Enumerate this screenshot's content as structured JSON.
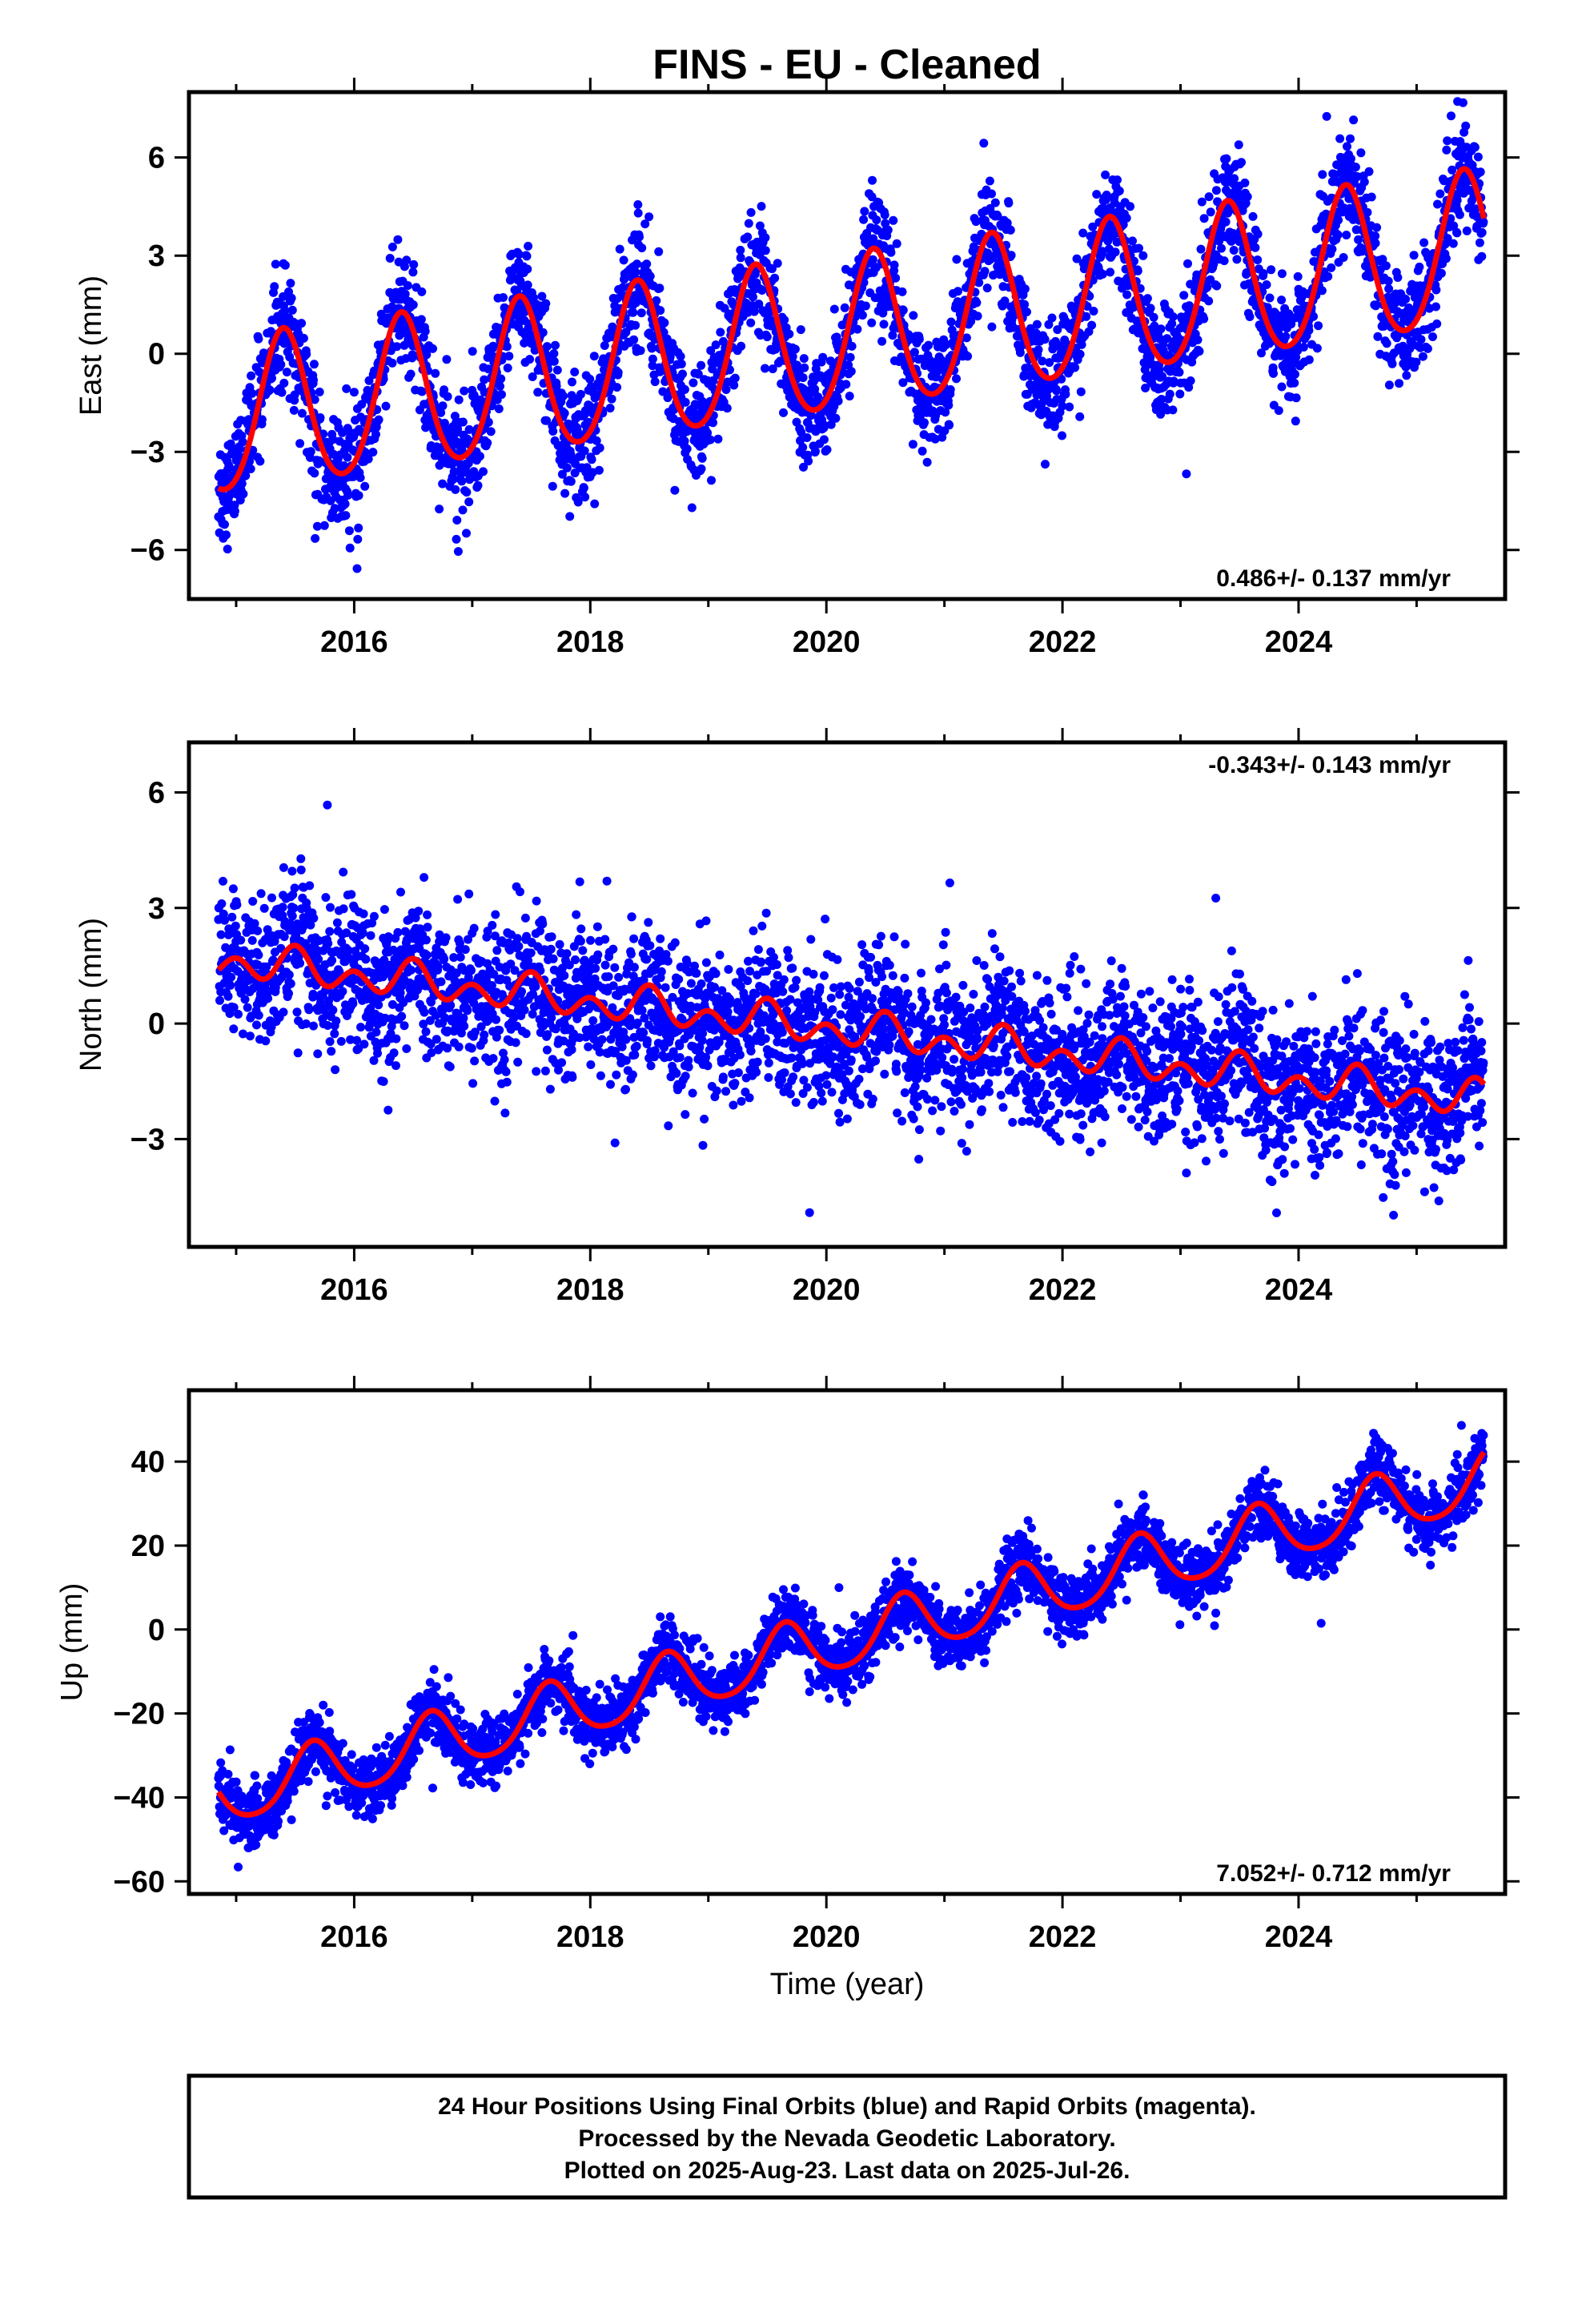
{
  "title": "FINS  - EU - Cleaned",
  "footer": {
    "line1": "24 Hour Positions Using Final Orbits (blue) and Rapid Orbits (magenta).",
    "line2": "Processed by the Nevada Geodetic Laboratory.",
    "line3": "Plotted on 2025-Aug-23. Last data on 2025-Jul-26."
  },
  "colors": {
    "points": "#0000ff",
    "fit": "#ff0000",
    "frame": "#000000"
  },
  "chart_data": [
    {
      "type": "scatter",
      "ylabel": "East (mm)",
      "xlabel": "",
      "xlim": [
        2014.6,
        2025.75
      ],
      "ylim": [
        -7.5,
        8.0
      ],
      "xticks": [
        "2016",
        "2018",
        "2020",
        "2022",
        "2024"
      ],
      "yticks": [
        "6",
        "3",
        "0",
        "−3",
        "−6"
      ],
      "rate_label": "0.486+/- 0.137 mm/yr",
      "rate_position": "bottom-right",
      "data_span": [
        2014.85,
        2025.57
      ],
      "fit": {
        "offset_at_2015": -2.0,
        "rate_mm_per_yr": 0.486,
        "annual_amplitude": 2.35,
        "annual_peak_year_fraction": 0.4,
        "semiannual_amplitude": 0.25,
        "scatter_sigma": 0.85
      },
      "series": [
        {
          "name": "",
          "role": "daily positions",
          "color": "#0000ff"
        },
        {
          "name": "",
          "role": "model fit",
          "color": "#ff0000"
        }
      ]
    },
    {
      "type": "scatter",
      "ylabel": "North (mm)",
      "xlabel": "",
      "xlim": [
        2014.6,
        2025.75
      ],
      "ylim": [
        -5.8,
        7.3
      ],
      "xticks": [
        "2016",
        "2018",
        "2020",
        "2022",
        "2024"
      ],
      "yticks": [
        "6",
        "3",
        "0",
        "−3"
      ],
      "rate_label": "-0.343+/- 0.143 mm/yr",
      "rate_position": "top-right",
      "data_span": [
        2014.85,
        2025.57
      ],
      "fit": {
        "offset_at_2015": 1.6,
        "rate_mm_per_yr": -0.343,
        "annual_amplitude": 0.25,
        "annual_peak_year_fraction": 0.5,
        "semiannual_amplitude": 0.35,
        "scatter_sigma": 0.95
      },
      "series": [
        {
          "name": "",
          "role": "daily positions",
          "color": "#0000ff"
        },
        {
          "name": "",
          "role": "model fit",
          "color": "#ff0000"
        }
      ]
    },
    {
      "type": "scatter",
      "ylabel": "Up (mm)",
      "xlabel": "Time (year)",
      "xlim": [
        2014.6,
        2025.75
      ],
      "ylim": [
        -63,
        57
      ],
      "xticks": [
        "2016",
        "2018",
        "2020",
        "2022",
        "2024"
      ],
      "yticks": [
        "40",
        "20",
        "0",
        "−20",
        "−40",
        "−60"
      ],
      "rate_label": "7.052+/- 0.712 mm/yr",
      "rate_position": "bottom-right",
      "data_span": [
        2014.85,
        2025.57
      ],
      "fit": {
        "offset_at_2015": -39.0,
        "rate_mm_per_yr": 7.052,
        "annual_amplitude": 7.0,
        "annual_peak_year_fraction": 0.65,
        "semiannual_amplitude": 1.0,
        "scatter_sigma": 3.8
      },
      "series": [
        {
          "name": "",
          "role": "daily positions",
          "color": "#0000ff"
        },
        {
          "name": "",
          "role": "model fit",
          "color": "#ff0000"
        }
      ]
    }
  ]
}
